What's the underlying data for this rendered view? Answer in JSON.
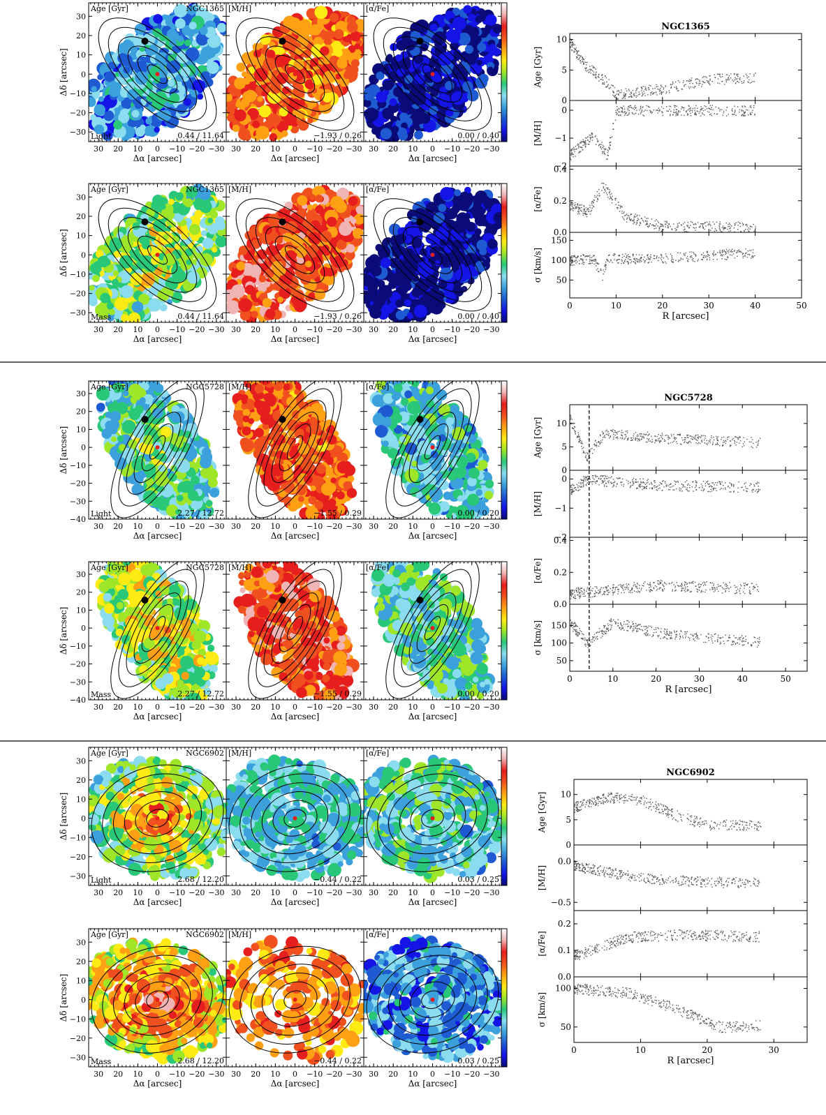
{
  "colors": {
    "colormap": [
      "#0a0a78",
      "#1414e6",
      "#1e5ad2",
      "#3ca0dc",
      "#8cdcf0",
      "#28c878",
      "#a0e628",
      "#ffeb14",
      "#ffa014",
      "#f0501e",
      "#e61e1e",
      "#f0b4b4",
      "#ffffff"
    ],
    "contour": "#000000",
    "scatter": "#555555",
    "separator": "#000000"
  },
  "common": {
    "xlabel": "Δα [arcsec]",
    "ylabel": "Δδ [arcsec]",
    "xticks": [
      "30",
      "20",
      "10",
      "0",
      "−10",
      "−20",
      "−30"
    ],
    "rlabel": "R [arcsec]",
    "panel_labels": [
      "Age [Gyr]",
      "[M/H]",
      "[α/Fe]"
    ],
    "profile_ylabels": [
      "Age [Gyr]",
      "[M/H]",
      "[α/Fe]",
      "σ [km/s]"
    ]
  },
  "galaxies": [
    {
      "name": "NGC1365",
      "morph": "barred",
      "map_yticks": [
        "30",
        "20",
        "10",
        "0",
        "−10",
        "−20",
        "−30"
      ],
      "map_ymin": -35,
      "map_ymax": 37,
      "rows": [
        {
          "weighting": "Light",
          "ranges": [
            "0.44 / 11.64",
            "−1.93 / 0.26",
            "0.00 / 0.40"
          ],
          "bias": [
            -0.7,
            0.7,
            -1.2
          ]
        },
        {
          "weighting": "Mass",
          "ranges": [
            "0.44 / 11.64",
            "−1.93 / 0.26",
            "0.00 / 0.40"
          ],
          "bias": [
            0.1,
            0.95,
            -1.4
          ]
        }
      ],
      "profile": {
        "xmax": 50,
        "xticks": [
          "0",
          "10",
          "20",
          "30",
          "40",
          "50"
        ],
        "dashed_x": null,
        "panels": [
          {
            "ymin": 0,
            "ymax": 11,
            "yticks": [
              {
                "v": 0,
                "t": "0"
              },
              {
                "v": 5,
                "t": "5"
              },
              {
                "v": 10,
                "t": "10"
              }
            ],
            "trend": [
              [
                0,
                9.5
              ],
              [
                3,
                6
              ],
              [
                8,
                3
              ],
              [
                10,
                1
              ],
              [
                20,
                2
              ],
              [
                30,
                3.5
              ],
              [
                50,
                4
              ]
            ]
          },
          {
            "ymin": -2,
            "ymax": 0.35,
            "yticks": [
              {
                "v": 0,
                "t": "0"
              },
              {
                "v": -1,
                "t": "−1"
              },
              {
                "v": -2,
                "t": "−2"
              }
            ],
            "trend": [
              [
                0,
                -1.6
              ],
              [
                5,
                -0.9
              ],
              [
                8,
                -1.6
              ],
              [
                10,
                0
              ],
              [
                20,
                0
              ],
              [
                50,
                0
              ]
            ]
          },
          {
            "ymin": 0,
            "ymax": 0.42,
            "yticks": [
              {
                "v": 0,
                "t": "0.0"
              },
              {
                "v": 0.2,
                "t": "0.2"
              },
              {
                "v": 0.4,
                "t": "0.4"
              }
            ],
            "trend": [
              [
                0,
                0.17
              ],
              [
                4,
                0.13
              ],
              [
                7,
                0.3
              ],
              [
                12,
                0.1
              ],
              [
                20,
                0.04
              ],
              [
                50,
                0.03
              ]
            ]
          },
          {
            "ymin": 5,
            "ymax": 170,
            "yticks": [
              {
                "v": 50,
                "t": "50"
              },
              {
                "v": 100,
                "t": "100"
              },
              {
                "v": 150,
                "t": "150"
              }
            ],
            "trend": [
              [
                0,
                100
              ],
              [
                5,
                105
              ],
              [
                7,
                60
              ],
              [
                8,
                105
              ],
              [
                20,
                105
              ],
              [
                40,
                120
              ],
              [
                50,
                125
              ]
            ]
          }
        ]
      }
    },
    {
      "name": "NGC5728",
      "morph": "barred",
      "map_yticks": [
        "30",
        "20",
        "10",
        "0",
        "−10",
        "−20",
        "−30",
        "−40"
      ],
      "map_ymin": -40,
      "map_ymax": 37,
      "rows": [
        {
          "weighting": "Light",
          "ranges": [
            "2.27 / 12.72",
            "−1.55 / 0.29",
            "0.00 / 0.20"
          ],
          "bias": [
            -0.2,
            0.8,
            0.1
          ]
        },
        {
          "weighting": "Mass",
          "ranges": [
            "2.27 / 12.72",
            "−1.55 / 0.29",
            "0.00 / 0.20"
          ],
          "bias": [
            0.3,
            0.9,
            0.3
          ]
        }
      ],
      "profile": {
        "xmax": 55,
        "xticks": [
          "0",
          "10",
          "20",
          "30",
          "40",
          "50"
        ],
        "dashed_x": 4.5,
        "panels": [
          {
            "ymin": 0,
            "ymax": 14,
            "yticks": [
              {
                "v": 0,
                "t": "0"
              },
              {
                "v": 5,
                "t": "5"
              },
              {
                "v": 10,
                "t": "10"
              }
            ],
            "trend": [
              [
                0,
                11
              ],
              [
                4,
                3
              ],
              [
                8,
                8
              ],
              [
                20,
                7
              ],
              [
                55,
                5.5
              ]
            ]
          },
          {
            "ymin": -2,
            "ymax": 0.3,
            "yticks": [
              {
                "v": 0,
                "t": "0"
              },
              {
                "v": -1,
                "t": "−1"
              },
              {
                "v": -2,
                "t": "−2"
              }
            ],
            "trend": [
              [
                0,
                -0.4
              ],
              [
                4,
                0
              ],
              [
                20,
                -0.2
              ],
              [
                55,
                -0.3
              ]
            ]
          },
          {
            "ymin": 0,
            "ymax": 0.42,
            "yticks": [
              {
                "v": 0,
                "t": "0.0"
              },
              {
                "v": 0.2,
                "t": "0.2"
              },
              {
                "v": 0.4,
                "t": "0.4"
              }
            ],
            "trend": [
              [
                0,
                0.07
              ],
              [
                5,
                0.08
              ],
              [
                20,
                0.12
              ],
              [
                55,
                0.09
              ]
            ]
          },
          {
            "ymin": 20,
            "ymax": 210,
            "yticks": [
              {
                "v": 50,
                "t": "50"
              },
              {
                "v": 100,
                "t": "100"
              },
              {
                "v": 150,
                "t": "150"
              }
            ],
            "trend": [
              [
                0,
                160
              ],
              [
                4,
                100
              ],
              [
                10,
                160
              ],
              [
                20,
                130
              ],
              [
                55,
                90
              ]
            ]
          }
        ]
      }
    },
    {
      "name": "NGC6902",
      "morph": "spiral",
      "map_yticks": [
        "30",
        "20",
        "10",
        "0",
        "−10",
        "−20",
        "−30"
      ],
      "map_ymin": -35,
      "map_ymax": 37,
      "rows": [
        {
          "weighting": "Light",
          "ranges": [
            "2.68 / 12.20",
            "−0.44 / 0.22",
            "0.03 / 0.25"
          ],
          "bias": [
            0.1,
            -0.6,
            0.2
          ]
        },
        {
          "weighting": "Mass",
          "ranges": [
            "2.68 / 12.20",
            "−0.44 / 0.22",
            "0.03 / 0.25"
          ],
          "bias": [
            0.6,
            0.6,
            -0.3
          ]
        }
      ],
      "profile": {
        "xmax": 35,
        "xticks": [
          "0",
          "10",
          "20",
          "30"
        ],
        "dashed_x": null,
        "panels": [
          {
            "ymin": 0,
            "ymax": 13,
            "yticks": [
              {
                "v": 0,
                "t": "0"
              },
              {
                "v": 5,
                "t": "5"
              },
              {
                "v": 10,
                "t": "10"
              }
            ],
            "trend": [
              [
                0,
                7.5
              ],
              [
                5,
                9.5
              ],
              [
                10,
                9
              ],
              [
                15,
                6
              ],
              [
                20,
                4
              ],
              [
                35,
                4
              ]
            ]
          },
          {
            "ymin": -0.6,
            "ymax": 0.2,
            "yticks": [
              {
                "v": 0,
                "t": "0.0"
              },
              {
                "v": -0.5,
                "t": "−0.5"
              }
            ],
            "trend": [
              [
                0,
                -0.05
              ],
              [
                10,
                -0.2
              ],
              [
                20,
                -0.25
              ],
              [
                35,
                -0.25
              ]
            ]
          },
          {
            "ymin": 0,
            "ymax": 0.25,
            "yticks": [
              {
                "v": 0,
                "t": "0.0"
              },
              {
                "v": 0.1,
                "t": "0.1"
              },
              {
                "v": 0.2,
                "t": "0.2"
              }
            ],
            "trend": [
              [
                0,
                0.08
              ],
              [
                8,
                0.15
              ],
              [
                15,
                0.16
              ],
              [
                35,
                0.15
              ]
            ]
          },
          {
            "ymin": 30,
            "ymax": 115,
            "yticks": [
              {
                "v": 50,
                "t": "50"
              },
              {
                "v": 100,
                "t": "100"
              }
            ],
            "trend": [
              [
                0,
                100
              ],
              [
                8,
                95
              ],
              [
                15,
                75
              ],
              [
                22,
                50
              ],
              [
                35,
                55
              ]
            ]
          }
        ]
      }
    }
  ]
}
